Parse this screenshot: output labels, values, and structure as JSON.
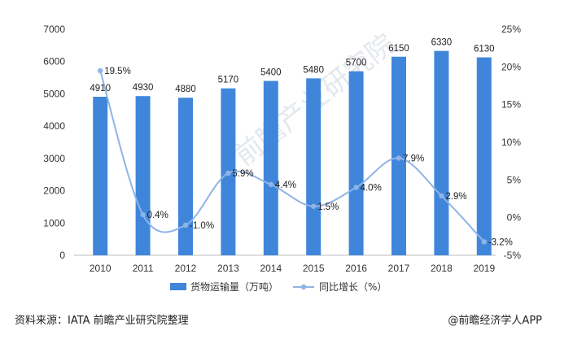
{
  "chart_data": {
    "type": "bar+line",
    "categories": [
      "2010",
      "2011",
      "2012",
      "2013",
      "2014",
      "2015",
      "2016",
      "2017",
      "2018",
      "2019"
    ],
    "series": [
      {
        "name": "货物运输量（万吨）",
        "type": "bar",
        "axis": "left",
        "values": [
          4910,
          4930,
          4880,
          5170,
          5400,
          5480,
          5700,
          6150,
          6330,
          6130
        ],
        "labels": [
          "4910",
          "4930",
          "4880",
          "5170",
          "5400",
          "5480",
          "5700",
          "6150",
          "6330",
          "6130"
        ],
        "color": "#3f86db"
      },
      {
        "name": "同比增长（%）",
        "type": "line",
        "axis": "right",
        "values": [
          19.5,
          0.4,
          -1.0,
          5.9,
          4.4,
          1.5,
          4.0,
          7.9,
          2.9,
          -3.2
        ],
        "labels": [
          "19.5%",
          "0.4%",
          "-1.0%",
          "5.9%",
          "4.4%",
          "1.5%",
          "4.0%",
          "7.9%",
          "2.9%",
          "-3.2%"
        ],
        "color": "#8fb4e6"
      }
    ],
    "left_axis": {
      "min": 0,
      "max": 7000,
      "ticks": [
        0,
        1000,
        2000,
        3000,
        4000,
        5000,
        6000,
        7000
      ],
      "tick_labels": [
        "0",
        "1000",
        "2000",
        "3000",
        "4000",
        "5000",
        "6000",
        "7000"
      ]
    },
    "right_axis": {
      "min": -5,
      "max": 25,
      "ticks": [
        -5,
        0,
        5,
        10,
        15,
        20,
        25
      ],
      "tick_labels": [
        "-5%",
        "0%",
        "5%",
        "10%",
        "15%",
        "20%",
        "25%"
      ]
    },
    "legend_position": "bottom",
    "grid": false
  },
  "legend": {
    "bar_label": "货物运输量（万吨）",
    "line_label": "同比增长（%）"
  },
  "footer": {
    "source": "资料来源：IATA 前瞻产业研究院整理",
    "credit": "@前瞻经济学人APP"
  },
  "watermark": {
    "text": "前瞻产业研究院"
  }
}
